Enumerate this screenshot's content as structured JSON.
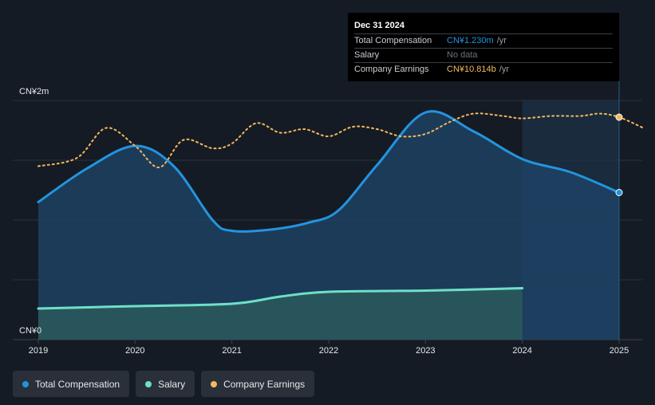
{
  "chart_data": {
    "type": "area",
    "y_axis": {
      "top_label": "CN¥2m",
      "bottom_label": "CN¥0",
      "ylim": [
        0,
        2.0
      ],
      "unit": "CN¥m"
    },
    "x_ticks": [
      "2019",
      "2020",
      "2021",
      "2022",
      "2023",
      "2024",
      "2025"
    ],
    "xlim": [
      2019.0,
      2025.25
    ],
    "forecast_start": 2024.0,
    "series": [
      {
        "name": "Total Compensation",
        "color": "#2394df",
        "points": [
          [
            2019.0,
            1.15
          ],
          [
            2019.5,
            1.43
          ],
          [
            2020.0,
            1.62
          ],
          [
            2020.4,
            1.45
          ],
          [
            2020.8,
            1.0
          ],
          [
            2021.0,
            0.91
          ],
          [
            2021.4,
            0.92
          ],
          [
            2021.8,
            0.98
          ],
          [
            2022.1,
            1.08
          ],
          [
            2022.5,
            1.46
          ],
          [
            2023.0,
            1.9
          ],
          [
            2023.5,
            1.74
          ],
          [
            2024.0,
            1.51
          ],
          [
            2024.5,
            1.4
          ],
          [
            2025.0,
            1.23
          ]
        ]
      },
      {
        "name": "Salary",
        "color": "#6ee0c8",
        "points": [
          [
            2019.0,
            0.26
          ],
          [
            2020.0,
            0.28
          ],
          [
            2021.0,
            0.3
          ],
          [
            2021.5,
            0.36
          ],
          [
            2022.0,
            0.4
          ],
          [
            2023.0,
            0.41
          ],
          [
            2024.0,
            0.43
          ]
        ]
      },
      {
        "name": "Company Earnings",
        "color": "#f5b95d",
        "points": [
          [
            2019.0,
            1.45
          ],
          [
            2019.4,
            1.52
          ],
          [
            2019.7,
            1.77
          ],
          [
            2020.0,
            1.62
          ],
          [
            2020.25,
            1.44
          ],
          [
            2020.5,
            1.67
          ],
          [
            2020.8,
            1.6
          ],
          [
            2021.0,
            1.64
          ],
          [
            2021.25,
            1.81
          ],
          [
            2021.5,
            1.73
          ],
          [
            2021.75,
            1.76
          ],
          [
            2022.0,
            1.7
          ],
          [
            2022.25,
            1.78
          ],
          [
            2022.5,
            1.76
          ],
          [
            2022.75,
            1.7
          ],
          [
            2023.0,
            1.72
          ],
          [
            2023.25,
            1.82
          ],
          [
            2023.5,
            1.89
          ],
          [
            2023.8,
            1.87
          ],
          [
            2024.0,
            1.85
          ],
          [
            2024.3,
            1.87
          ],
          [
            2024.6,
            1.87
          ],
          [
            2024.8,
            1.89
          ],
          [
            2025.0,
            1.86
          ],
          [
            2025.25,
            1.77
          ]
        ]
      }
    ],
    "grid": true
  },
  "tooltip": {
    "date": "Dec 31 2024",
    "rows": [
      {
        "name": "Total Compensation",
        "value": "CN¥1.230m",
        "unit": "/yr"
      },
      {
        "name": "Salary",
        "value": "No data",
        "unit": ""
      },
      {
        "name": "Company Earnings",
        "value": "CN¥10.814b",
        "unit": "/yr"
      }
    ]
  },
  "legend": [
    {
      "label": "Total Compensation",
      "color": "#2394df"
    },
    {
      "label": "Salary",
      "color": "#6ee0c8"
    },
    {
      "label": "Company Earnings",
      "color": "#f5b95d"
    }
  ]
}
